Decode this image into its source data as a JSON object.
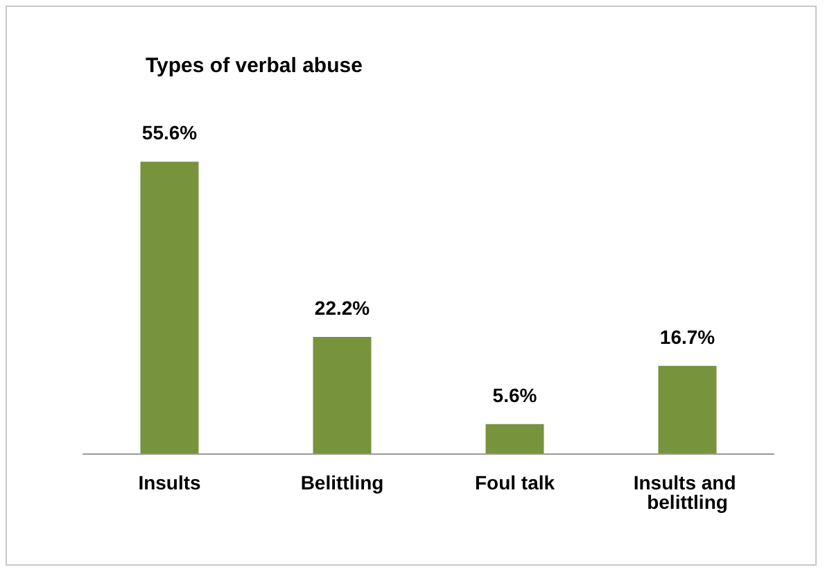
{
  "chart_data": {
    "type": "bar",
    "title": "Types of verbal abuse",
    "categories": [
      "Insults",
      "Belittling",
      "Foul talk",
      "Insults and belittling"
    ],
    "values": [
      55.6,
      22.2,
      5.6,
      16.7
    ],
    "color": "#77933c",
    "value_labels": [
      "55.6%",
      "22.2%",
      "5.6%",
      "16.7%"
    ]
  }
}
